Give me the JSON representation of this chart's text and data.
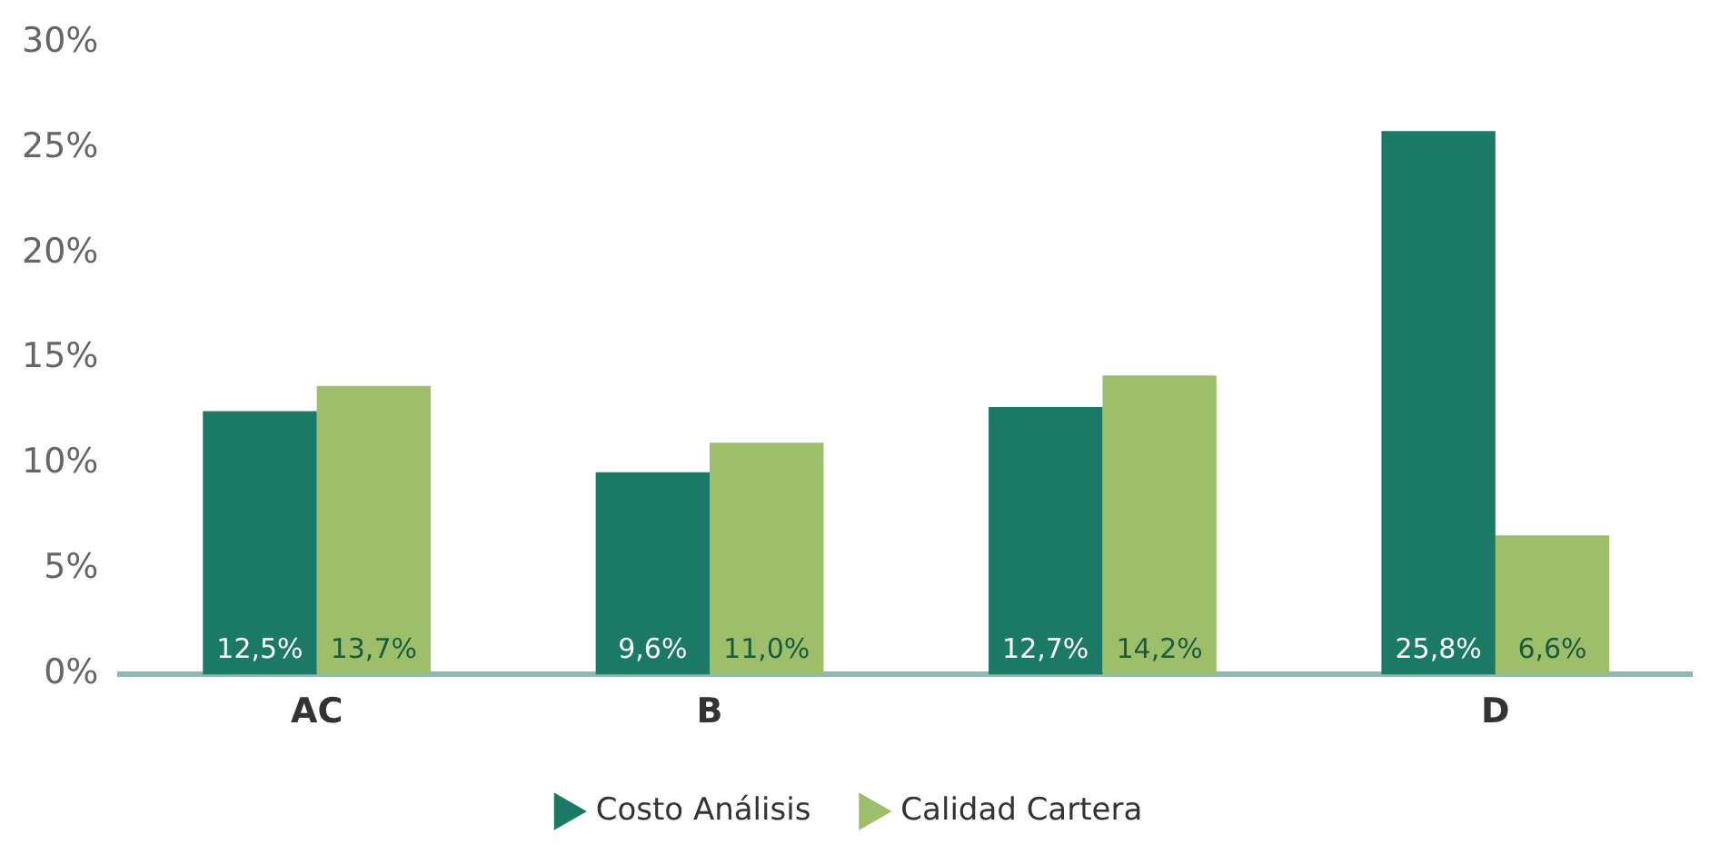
{
  "chart_data": {
    "type": "bar",
    "categories": [
      "AC",
      "B",
      null,
      "D"
    ],
    "series": [
      {
        "name": "Costo Análisis",
        "color": "#1a7a66",
        "values": [
          12.5,
          9.6,
          12.7,
          25.8
        ],
        "value_labels": [
          "12,5%",
          "9,6%",
          "12,7%",
          "25,8%"
        ]
      },
      {
        "name": "Calidad Cartera",
        "color": "#9dbf6a",
        "values": [
          13.7,
          11.0,
          14.2,
          6.6
        ],
        "value_labels": [
          "13,7%",
          "11,0%",
          "14,2%",
          "6,6%"
        ]
      }
    ],
    "ylim": [
      0,
      30
    ],
    "yticks": [
      {
        "value": 0,
        "label": "0%"
      },
      {
        "value": 5,
        "label": "5%"
      },
      {
        "value": 10,
        "label": "10%"
      },
      {
        "value": 15,
        "label": "15%"
      },
      {
        "value": 20,
        "label": "20%"
      },
      {
        "value": 25,
        "label": "25%"
      },
      {
        "value": 30,
        "label": "30%"
      }
    ],
    "grid": false,
    "legend": "bottom"
  }
}
